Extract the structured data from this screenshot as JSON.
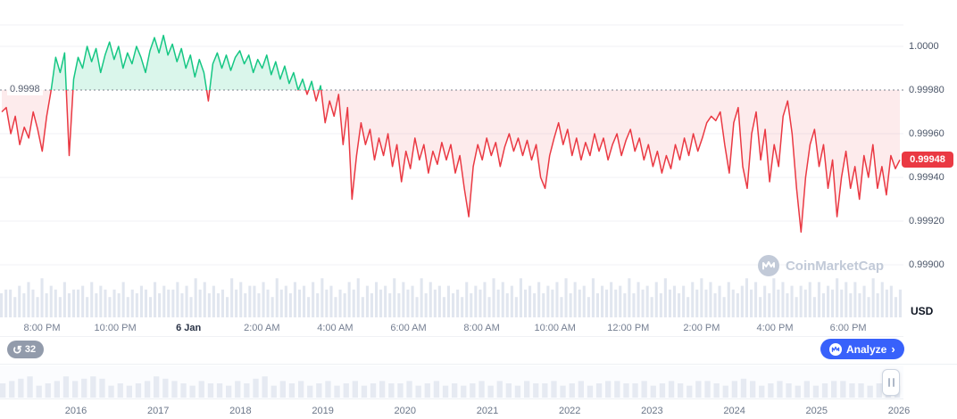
{
  "theme": {
    "green": "#16c784",
    "red": "#ea3943",
    "blue": "#3861fb",
    "grid": "#f0f2f5",
    "baseline_dotted": "#7c828e",
    "volume_bar": "#e1e6ef",
    "timeline_bar": "#e6eaf2",
    "axis_text": "#4a5568"
  },
  "watermark": "CoinMarketCap",
  "toolbar": {
    "history_count": "32",
    "analyze_label": "Analyze",
    "chevron": "›"
  },
  "chart": {
    "baseline_label": "0.9998",
    "current_price": "0.99948",
    "unit_label": "USD",
    "y_axis": [
      {
        "label": "1.0000",
        "value": 1.0
      },
      {
        "label": "0.99980",
        "value": 0.9998
      },
      {
        "label": "0.99960",
        "value": 0.9996
      },
      {
        "label": "0.99940",
        "value": 0.9994
      },
      {
        "label": "0.99920",
        "value": 0.9992
      },
      {
        "label": "0.99900",
        "value": 0.999
      }
    ],
    "x_axis": [
      {
        "label": "8:00 PM",
        "strong": false
      },
      {
        "label": "10:00 PM",
        "strong": false
      },
      {
        "label": "6 Jan",
        "strong": true
      },
      {
        "label": "2:00 AM",
        "strong": false
      },
      {
        "label": "4:00 AM",
        "strong": false
      },
      {
        "label": "6:00 AM",
        "strong": false
      },
      {
        "label": "8:00 AM",
        "strong": false
      },
      {
        "label": "10:00 AM",
        "strong": false
      },
      {
        "label": "12:00 PM",
        "strong": false
      },
      {
        "label": "2:00 PM",
        "strong": false
      },
      {
        "label": "4:00 PM",
        "strong": false
      },
      {
        "label": "6:00 PM",
        "strong": false
      }
    ]
  },
  "timeline": {
    "years": [
      "2016",
      "2017",
      "2018",
      "2019",
      "2020",
      "2021",
      "2022",
      "2023",
      "2024",
      "2025",
      "2026"
    ]
  },
  "chart_data": {
    "type": "line",
    "title": "Stablecoin price (USD), intraday",
    "unit": "USD",
    "baseline": 0.9998,
    "ylim": [
      0.999,
      1.0001
    ],
    "current_price_value": 0.99948,
    "price_base": 0.999,
    "price_offsets_e5": [
      70,
      72,
      60,
      68,
      55,
      63,
      58,
      70,
      62,
      52,
      68,
      80,
      95,
      88,
      97,
      50,
      85,
      95,
      90,
      100,
      93,
      99,
      88,
      96,
      102,
      94,
      100,
      90,
      97,
      92,
      100,
      95,
      88,
      98,
      104,
      97,
      105,
      96,
      101,
      93,
      99,
      90,
      96,
      86,
      94,
      88,
      75,
      92,
      97,
      90,
      96,
      89,
      95,
      98,
      92,
      96,
      88,
      94,
      90,
      96,
      87,
      93,
      85,
      91,
      83,
      88,
      80,
      85,
      78,
      84,
      75,
      82,
      65,
      75,
      68,
      78,
      55,
      72,
      30,
      50,
      65,
      55,
      62,
      48,
      58,
      50,
      60,
      45,
      55,
      38,
      52,
      44,
      58,
      48,
      55,
      42,
      52,
      46,
      56,
      48,
      55,
      42,
      50,
      35,
      22,
      45,
      55,
      48,
      58,
      50,
      56,
      45,
      54,
      60,
      52,
      58,
      50,
      57,
      48,
      55,
      40,
      35,
      50,
      58,
      65,
      55,
      62,
      50,
      58,
      48,
      56,
      50,
      60,
      52,
      58,
      48,
      55,
      60,
      50,
      57,
      62,
      52,
      58,
      48,
      55,
      45,
      52,
      42,
      50,
      44,
      55,
      48,
      58,
      50,
      60,
      52,
      58,
      65,
      68,
      66,
      70,
      55,
      42,
      65,
      72,
      45,
      35,
      60,
      70,
      48,
      62,
      38,
      55,
      45,
      68,
      75,
      60,
      35,
      15,
      40,
      55,
      62,
      45,
      55,
      35,
      48,
      22,
      40,
      52,
      35,
      45,
      30,
      50,
      40,
      55,
      35,
      45,
      32,
      50,
      44,
      48
    ],
    "volume_profile_digits": "5664758649576485667485764658465764857668574968575649685775864967586748596746586947586759586749586747564857684968574967585768495867495768675958674859675748696857486579684759685747684857696858574958 6746"
  }
}
